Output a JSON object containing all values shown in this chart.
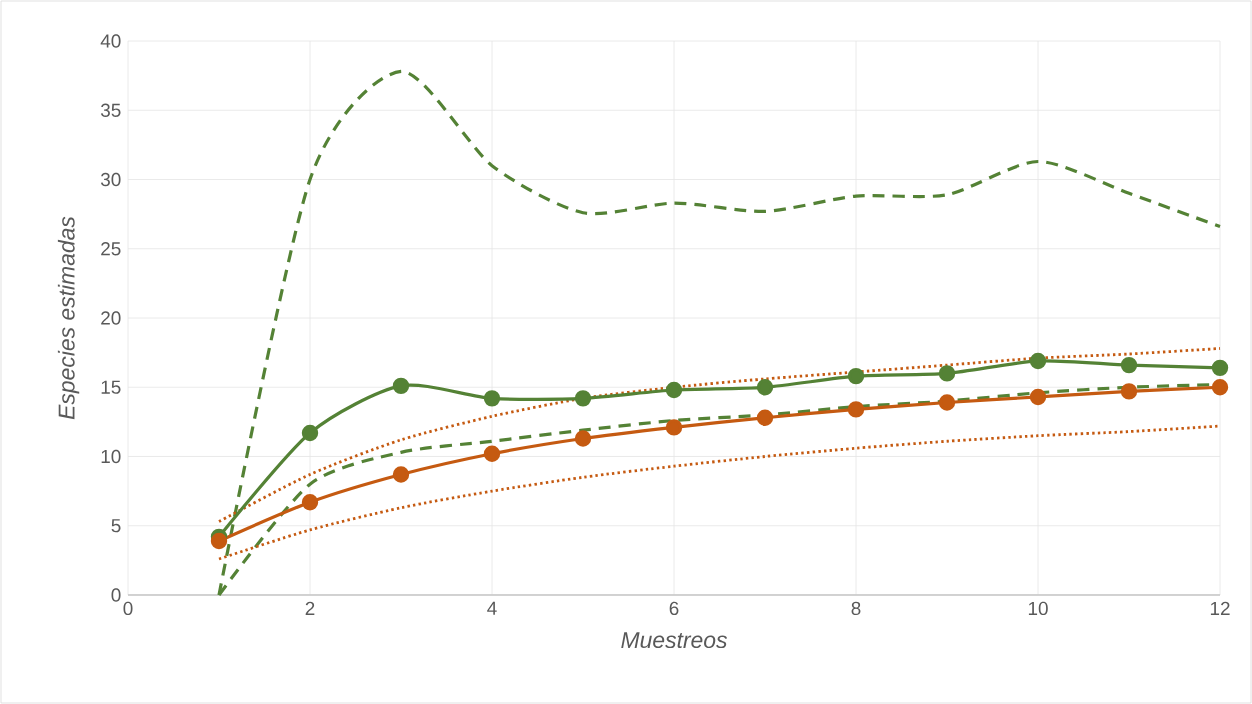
{
  "chart_data": {
    "type": "line",
    "xlabel": "Muestreos",
    "ylabel": "Especies estimadas",
    "xlim": [
      0,
      12
    ],
    "xticks": [
      0,
      2,
      4,
      6,
      8,
      10,
      12
    ],
    "ylim": [
      0,
      40
    ],
    "yticks": [
      0,
      5,
      10,
      15,
      20,
      25,
      30,
      35,
      40
    ],
    "grid": true,
    "x": [
      1,
      2,
      3,
      4,
      5,
      6,
      7,
      8,
      9,
      10,
      11,
      12
    ],
    "series": [
      {
        "color": "#548235",
        "line_style": "dashed",
        "marker": "none",
        "values": [
          0,
          30.0,
          37.8,
          31.0,
          27.6,
          28.3,
          27.7,
          28.8,
          28.9,
          31.3,
          29.0,
          26.6
        ]
      },
      {
        "color": "#548235",
        "line_style": "dashed",
        "marker": "none",
        "values": [
          0,
          8.0,
          10.3,
          11.1,
          11.9,
          12.6,
          13.0,
          13.6,
          14.0,
          14.6,
          15.0,
          15.2
        ]
      },
      {
        "color": "#c55a11",
        "line_style": "dotted",
        "marker": "none",
        "values": [
          5.3,
          8.7,
          11.2,
          12.9,
          14.2,
          15.0,
          15.6,
          16.1,
          16.6,
          17.1,
          17.4,
          17.8
        ]
      },
      {
        "color": "#c55a11",
        "line_style": "dotted",
        "marker": "none",
        "values": [
          2.6,
          4.7,
          6.3,
          7.5,
          8.5,
          9.3,
          10.0,
          10.6,
          11.1,
          11.5,
          11.8,
          12.2
        ]
      },
      {
        "color": "#548235",
        "line_style": "solid",
        "marker": "circle",
        "values": [
          4.2,
          11.7,
          15.1,
          14.2,
          14.2,
          14.8,
          15.0,
          15.8,
          16.0,
          16.9,
          16.6,
          16.4
        ]
      },
      {
        "color": "#c55a11",
        "line_style": "solid",
        "marker": "circle",
        "values": [
          3.9,
          6.7,
          8.7,
          10.2,
          11.3,
          12.1,
          12.8,
          13.4,
          13.9,
          14.3,
          14.7,
          15.0
        ]
      }
    ]
  }
}
